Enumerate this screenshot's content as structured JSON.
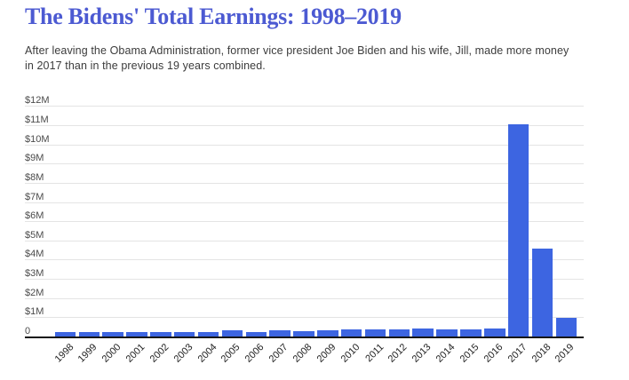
{
  "header": {
    "title": "The Bidens' Total Earnings: 1998–2019",
    "subtitle": "After leaving the Obama Administration, former vice president Joe Biden and his wife, Jill, made more money in 2017 than in the previous 19 years combined."
  },
  "colors": {
    "bar": "#3D65E1",
    "title": "#4C5AD2",
    "gridline": "#E4E4E4",
    "axis": "#161616"
  },
  "chart_data": {
    "type": "bar",
    "title": "The Bidens' Total Earnings: 1998–2019",
    "categories": [
      "1998",
      "1999",
      "2000",
      "2001",
      "2002",
      "2003",
      "2004",
      "2005",
      "2006",
      "2007",
      "2008",
      "2009",
      "2010",
      "2011",
      "2012",
      "2013",
      "2014",
      "2015",
      "2016",
      "2017",
      "2018",
      "2019"
    ],
    "values": [
      0.215,
      0.211,
      0.22,
      0.221,
      0.228,
      0.231,
      0.234,
      0.321,
      0.248,
      0.32,
      0.269,
      0.333,
      0.379,
      0.379,
      0.385,
      0.407,
      0.389,
      0.392,
      0.396,
      11.03,
      4.58,
      0.95
    ],
    "values_unit": "USD millions",
    "xlabel": "",
    "ylabel": "",
    "ylim": [
      0,
      12
    ],
    "y_ticks": [
      "0",
      "$1M",
      "$2M",
      "$3M",
      "$4M",
      "$5M",
      "$6M",
      "$7M",
      "$8M",
      "$9M",
      "$10M",
      "$11M",
      "$12M"
    ],
    "grid": "horizontal",
    "legend": "none",
    "bar_color": "#3D65E1"
  }
}
